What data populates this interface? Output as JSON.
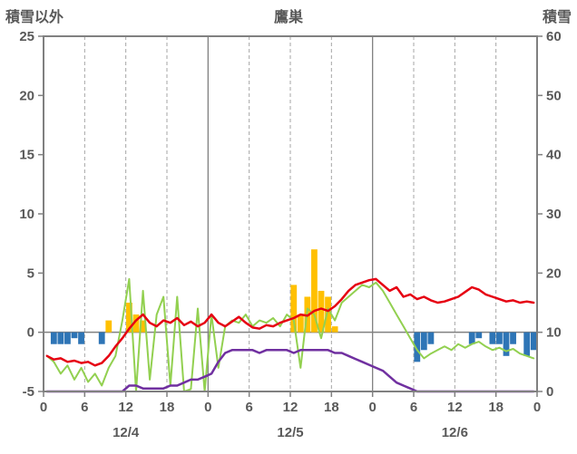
{
  "header": {
    "left_axis_title": "積雪以外",
    "title": "鷹巣",
    "right_axis_title": "積雪"
  },
  "colors": {
    "border": "#808080",
    "grid_dashed": "#a6a6a6",
    "grid_solid": "#808080",
    "text": "#595959",
    "red_line": "#e60012",
    "green_line": "#92d050",
    "purple_line": "#7030a0",
    "orange_bar": "#ffc000",
    "blue_bar": "#2e75b6"
  },
  "chart_data": {
    "type": "combo",
    "title": "鷹巣",
    "left_axis": {
      "label": "積雪以外",
      "min": -5,
      "max": 25,
      "ticks": [
        25,
        20,
        15,
        10,
        5,
        0,
        -5
      ]
    },
    "right_axis": {
      "label": "積雪",
      "min": 0,
      "max": 60,
      "ticks": [
        60,
        50,
        40,
        30,
        20,
        10,
        0
      ]
    },
    "x_axis": {
      "total_hours": 72,
      "tick_interval": 6,
      "tick_labels": [
        "0",
        "6",
        "12",
        "18",
        "0",
        "6",
        "12",
        "18",
        "0",
        "6",
        "12",
        "18",
        "0"
      ],
      "day_labels": [
        "12/4",
        "12/5",
        "12/6"
      ]
    },
    "series": [
      {
        "name": "orange-bars",
        "type": "bar",
        "axis": "left",
        "color": "#ffc000",
        "values": [
          0,
          0,
          0,
          0,
          0,
          0,
          0,
          0,
          0,
          1,
          0,
          0,
          2.5,
          1.5,
          1,
          0,
          0,
          0,
          0,
          0,
          0,
          0,
          0,
          0,
          0,
          0,
          0,
          0,
          0,
          0,
          0,
          0,
          0,
          0,
          0,
          0,
          4,
          1.5,
          3,
          7,
          3.5,
          3,
          0.5,
          0,
          0,
          0,
          0,
          0,
          0,
          0,
          0,
          0,
          0,
          0,
          0,
          0,
          0,
          0,
          0,
          0,
          0,
          0,
          0,
          0,
          0,
          0,
          0,
          0,
          0,
          0,
          0,
          0
        ]
      },
      {
        "name": "blue-bars",
        "type": "bar",
        "axis": "left",
        "color": "#2e75b6",
        "values": [
          0,
          -1,
          -1,
          -1,
          -0.5,
          -1,
          0,
          0,
          -1,
          0,
          0,
          0,
          0,
          0,
          0,
          0,
          0,
          0,
          0,
          0,
          0,
          0,
          0,
          0,
          0,
          0,
          0,
          0,
          0,
          0,
          0,
          0,
          0,
          0,
          0,
          0,
          0,
          0,
          0,
          0,
          0,
          0,
          0,
          0,
          0,
          0,
          0,
          0,
          0,
          0,
          0,
          0,
          0,
          0,
          -2.5,
          -1.5,
          -1,
          0,
          0,
          0,
          0,
          0,
          -1,
          -0.5,
          0,
          -1,
          -1,
          -2,
          -1,
          0,
          -2,
          -1.5
        ]
      },
      {
        "name": "green-line",
        "type": "line",
        "axis": "left",
        "color": "#92d050",
        "values": [
          -2.0,
          -2.5,
          -3.5,
          -2.8,
          -4.0,
          -3.0,
          -4.2,
          -3.5,
          -4.5,
          -3.0,
          -2.0,
          1.0,
          4.5,
          -5.0,
          3.5,
          -4.0,
          1.5,
          3.0,
          -4.5,
          3.0,
          -5.0,
          -4.8,
          2.0,
          -5.0,
          1.5,
          -3.0,
          0.5,
          1.0,
          0.8,
          1.5,
          0.5,
          1.0,
          0.8,
          1.2,
          0.5,
          1.5,
          1.0,
          -3.0,
          2.0,
          1.5,
          -0.5,
          2.0,
          1.0,
          2.5,
          3.0,
          3.5,
          4.0,
          3.8,
          4.2,
          3.5,
          2.5,
          1.5,
          0.5,
          -0.5,
          -1.5,
          -2.2,
          -1.8,
          -1.5,
          -1.2,
          -1.5,
          -1.0,
          -1.3,
          -1.0,
          -0.8,
          -1.2,
          -1.5,
          -1.3,
          -1.6,
          -1.4,
          -1.8,
          -2.0,
          -2.2
        ]
      },
      {
        "name": "purple-line",
        "type": "line",
        "axis": "right",
        "color": "#7030a0",
        "values": [
          0,
          0,
          0,
          0,
          0,
          0,
          0,
          0,
          0,
          0,
          0,
          0,
          1,
          1,
          0.5,
          0.5,
          0.5,
          0.5,
          1,
          1,
          1.5,
          2,
          2,
          2.5,
          3,
          5,
          6.5,
          7,
          7,
          7,
          7,
          6.5,
          7,
          7,
          7,
          7,
          6.5,
          7,
          7,
          7,
          7,
          7,
          6.5,
          6.5,
          6,
          5.5,
          5,
          4.5,
          4,
          3.5,
          2.5,
          1.5,
          1,
          0.5,
          0,
          0,
          0,
          0,
          0,
          0,
          0,
          0,
          0,
          0,
          0,
          0,
          0,
          0,
          0,
          0,
          0,
          0
        ]
      },
      {
        "name": "red-line",
        "type": "line",
        "axis": "left",
        "color": "#e60012",
        "values": [
          -2.0,
          -2.3,
          -2.2,
          -2.5,
          -2.4,
          -2.6,
          -2.5,
          -2.8,
          -2.6,
          -2.0,
          -1.2,
          -0.5,
          0.3,
          1.0,
          1.5,
          0.8,
          0.5,
          1.0,
          0.8,
          1.2,
          0.6,
          0.9,
          0.5,
          0.8,
          1.5,
          0.8,
          0.5,
          0.9,
          1.3,
          0.8,
          0.4,
          0.3,
          0.6,
          0.5,
          0.8,
          1.0,
          1.2,
          1.5,
          1.4,
          1.8,
          2.0,
          1.8,
          2.2,
          2.8,
          3.5,
          4.0,
          4.2,
          4.4,
          4.5,
          4.0,
          3.5,
          3.8,
          3.0,
          3.2,
          2.8,
          3.0,
          2.7,
          2.5,
          2.6,
          2.8,
          3.0,
          3.4,
          3.8,
          3.6,
          3.2,
          3.0,
          2.8,
          2.6,
          2.7,
          2.5,
          2.6,
          2.5
        ]
      }
    ]
  }
}
